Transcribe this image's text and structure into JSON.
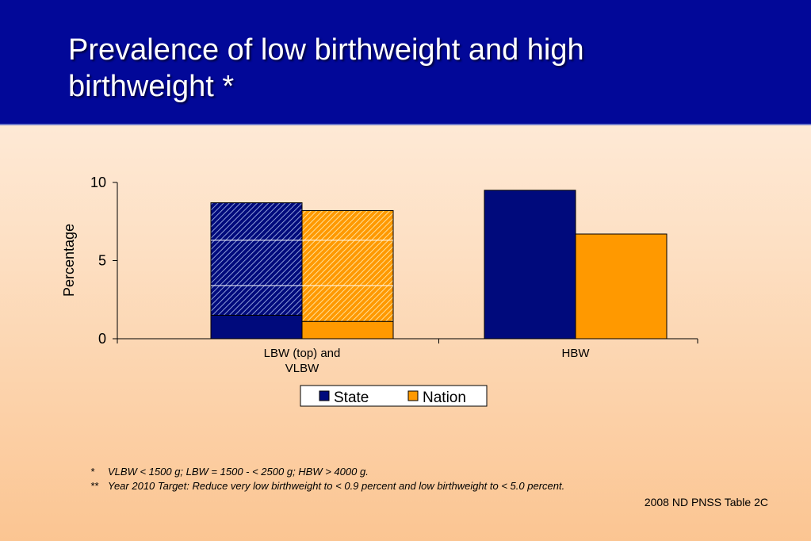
{
  "slide": {
    "title": "Prevalence of low birthweight and high birthweight *",
    "footnotes": [
      {
        "mark": "*",
        "text": "VLBW < 1500 g; LBW = 1500 - < 2500 g; HBW  > 4000 g."
      },
      {
        "mark": "**",
        "text": "Year 2010 Target:  Reduce very low birthweight to < 0.9 percent and low birthweight to < 5.0 percent."
      }
    ],
    "source": "2008 ND PNSS Table 2C"
  },
  "colors": {
    "title_band": "#020898",
    "state": "#000a7c",
    "nation": "#ff9900",
    "state_hatch_light": "#8d9bd8",
    "nation_hatch_light": "#ffdf98"
  },
  "chart_data": {
    "type": "bar",
    "stacked_first_category": true,
    "categories": [
      "LBW (top) and VLBW",
      "HBW"
    ],
    "category_label_lines": [
      [
        "LBW (top) and",
        "VLBW"
      ],
      [
        "HBW"
      ]
    ],
    "series": [
      {
        "name": "State",
        "vlbw": 1.5,
        "lbw_top": 8.7,
        "hbw": 9.5
      },
      {
        "name": "Nation",
        "vlbw": 1.1,
        "lbw_top": 8.2,
        "hbw": 6.7
      }
    ],
    "ylabel": "Percentage",
    "ylim": [
      0,
      10
    ],
    "yticks": [
      0,
      5,
      10
    ],
    "target_lines": [
      3.4,
      6.3
    ],
    "legend_position": "bottom-center"
  }
}
